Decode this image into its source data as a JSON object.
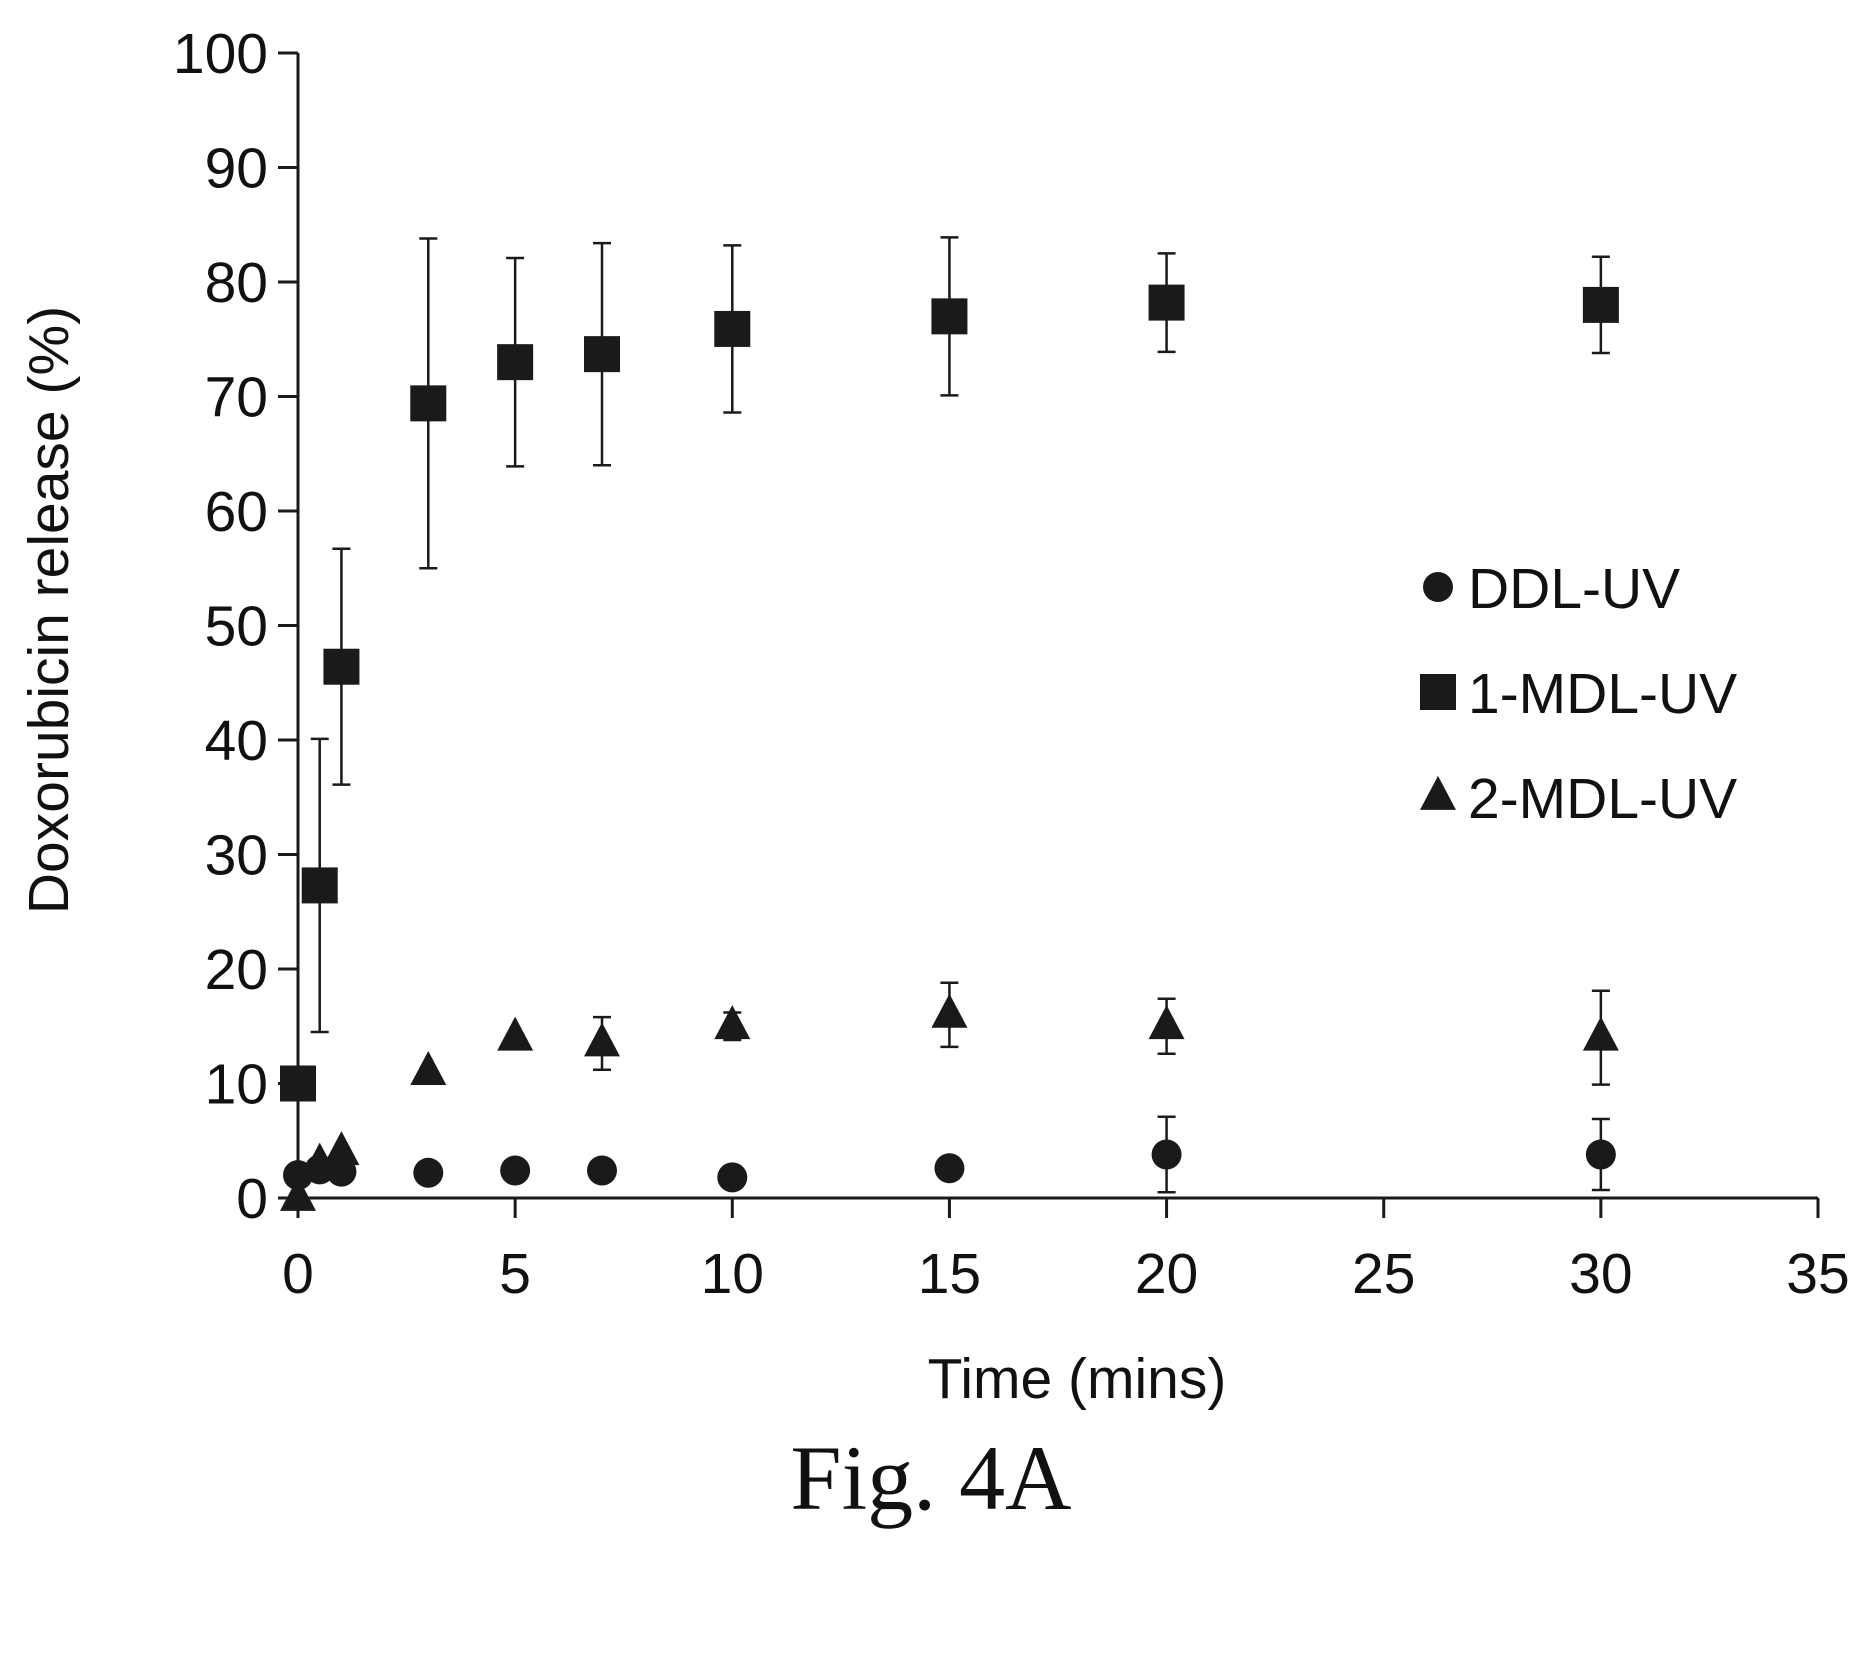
{
  "figure": {
    "caption": "Fig. 4A"
  },
  "chart_data": {
    "type": "scatter",
    "xlabel": "Time (mins)",
    "ylabel": "Doxorubicin release (%)",
    "xlim": [
      0,
      35
    ],
    "ylim": [
      0,
      100
    ],
    "xticks": [
      0,
      5,
      10,
      15,
      20,
      25,
      30,
      35
    ],
    "yticks": [
      0,
      10,
      20,
      30,
      40,
      50,
      60,
      70,
      80,
      90,
      100
    ],
    "grid": false,
    "legend_position": "right",
    "series": [
      {
        "name": "DDL-UV",
        "marker": "circle",
        "color": "#1a1a1a",
        "x": [
          0,
          0.5,
          1,
          3,
          5,
          7,
          10,
          15,
          20,
          30
        ],
        "y": [
          2,
          2.5,
          2.3,
          2.2,
          2.4,
          2.4,
          1.8,
          2.6,
          3.8,
          3.8
        ],
        "error": [
          0,
          0,
          0,
          0,
          0,
          0,
          0,
          0,
          3.3,
          3.1
        ]
      },
      {
        "name": "1-MDL-UV",
        "marker": "square",
        "color": "#1a1a1a",
        "x": [
          0,
          0.5,
          1,
          3,
          5,
          7,
          10,
          15,
          20,
          30
        ],
        "y": [
          10,
          27.3,
          46.4,
          69.4,
          73,
          73.7,
          75.9,
          77,
          78.2,
          78
        ],
        "error": [
          0,
          12.8,
          10.3,
          14.4,
          9.1,
          9.7,
          7.3,
          6.9,
          4.3,
          4.2
        ]
      },
      {
        "name": "2-MDL-UV",
        "marker": "triangle",
        "color": "#1a1a1a",
        "x": [
          0,
          0.5,
          1,
          3,
          5,
          7,
          10,
          15,
          20,
          30
        ],
        "y": [
          0,
          3,
          4,
          11,
          14,
          13.5,
          15,
          16,
          15,
          14
        ],
        "error": [
          0,
          0,
          0,
          0,
          0,
          2.3,
          1.2,
          2.8,
          2.4,
          4.1
        ]
      }
    ]
  }
}
